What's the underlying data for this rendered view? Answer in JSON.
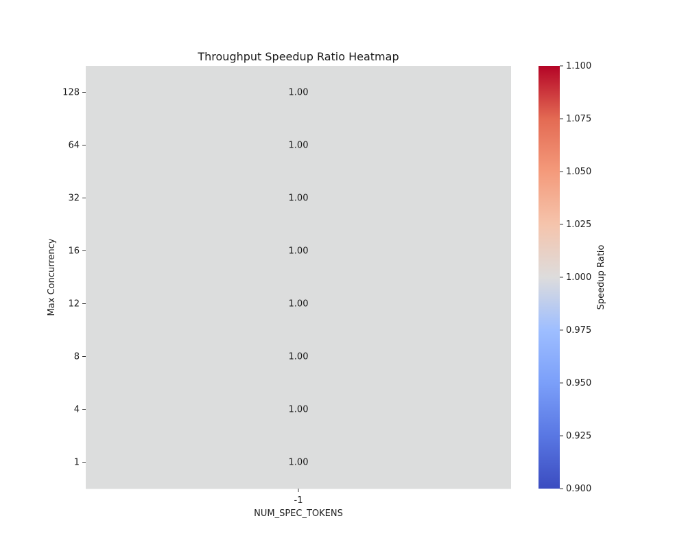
{
  "chart_data": {
    "type": "heatmap",
    "title": "Throughput Speedup Ratio Heatmap",
    "xlabel": "NUM_SPEC_TOKENS",
    "ylabel": "Max Concurrency",
    "x_categories": [
      "-1"
    ],
    "y_categories": [
      "128",
      "64",
      "32",
      "16",
      "12",
      "8",
      "4",
      "1"
    ],
    "values": [
      [
        1.0
      ],
      [
        1.0
      ],
      [
        1.0
      ],
      [
        1.0
      ],
      [
        1.0
      ],
      [
        1.0
      ],
      [
        1.0
      ],
      [
        1.0
      ]
    ],
    "value_format": "0.00",
    "colorbar": {
      "label": "Speedup Ratio",
      "colormap": "coolwarm",
      "vmin": 0.9,
      "vmax": 1.1,
      "ticks": [
        "0.900",
        "0.925",
        "0.950",
        "0.975",
        "1.000",
        "1.025",
        "1.050",
        "1.075",
        "1.100"
      ]
    },
    "cell_color": "#dcdddd"
  }
}
